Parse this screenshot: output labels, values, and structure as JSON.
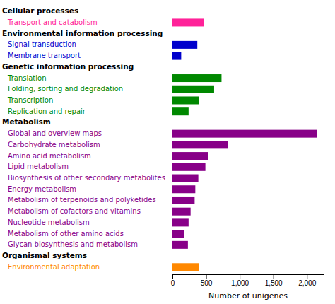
{
  "chart_data": {
    "type": "bar",
    "orientation": "horizontal",
    "categories": [
      "Cellular processes",
      "Transport and catabolism",
      "Environmental information processing",
      "Signal transduction",
      "Membrane transport",
      "Genetic information processing",
      "Translation",
      "Folding, sorting and degradation",
      "Transcription",
      "Replication and repair",
      "Metabolism",
      "Global and overview maps",
      "Carbohydrate metabolism",
      "Amino acid metabolism",
      "Lipid metabolism",
      "Biosynthesis of other secondary metabolites",
      "Energy metabolism",
      "Metabolism of terpenoids and polyketides",
      "Metabolism of cofactors and vitamins",
      "Nucleotide metabolism",
      "Metabolism of other amino acids",
      "Glycan biosynthesis and metabolism",
      "Organismal systems",
      "Environmental adaptation"
    ],
    "values": [
      null,
      470,
      null,
      370,
      130,
      null,
      730,
      620,
      390,
      240,
      null,
      2150,
      830,
      530,
      490,
      385,
      340,
      330,
      270,
      240,
      175,
      230,
      null,
      395
    ],
    "colors": [
      null,
      "#ff2299",
      null,
      "#0000cc",
      "#0000cc",
      null,
      "#008800",
      "#008800",
      "#008800",
      "#008800",
      null,
      "#880088",
      "#880088",
      "#880088",
      "#880088",
      "#880088",
      "#880088",
      "#880088",
      "#880088",
      "#880088",
      "#880088",
      "#880088",
      null,
      "#ff8800"
    ],
    "xlabel": "Number of unigenes",
    "xlim": [
      0,
      2250
    ],
    "xticks": [
      0,
      500,
      {
        "value": 1000,
        "label": "1,000"
      },
      {
        "value": 1500,
        "label": "1,500"
      },
      {
        "value": 2000,
        "label": "2,000"
      }
    ],
    "grid": false
  }
}
